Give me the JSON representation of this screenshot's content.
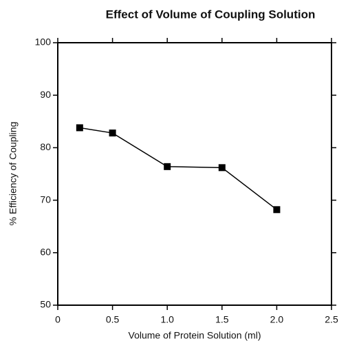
{
  "chart_data": {
    "type": "line",
    "title": "Effect of Volume of Coupling Solution",
    "x_label": "Volume of Protein Solution (ml)",
    "y_label": "% Efficiency of Coupling",
    "x": [
      0.2,
      0.5,
      1.0,
      1.5,
      2.0
    ],
    "values": [
      83.8,
      82.8,
      76.4,
      76.2,
      68.2
    ],
    "color": "#000000",
    "marker": "square",
    "xlim": [
      0,
      2.5
    ],
    "xticks": [
      0,
      0.5,
      {
        "value": 1,
        "label": "1.0"
      },
      1.5,
      {
        "value": 2,
        "label": "2.0"
      },
      2.5
    ],
    "ylim": [
      50,
      100
    ],
    "yticks": [
      50,
      60,
      70,
      80,
      90,
      100
    ],
    "grid": false
  }
}
